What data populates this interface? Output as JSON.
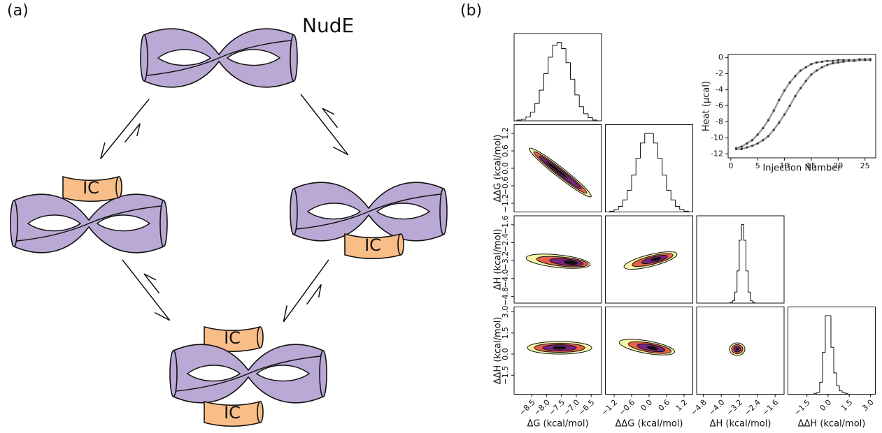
{
  "panel_labels": [
    "(a)",
    "(b)"
  ],
  "diagram": {
    "title": "NudE",
    "ic_labels": [
      "IC",
      "IC",
      "IC",
      "IC"
    ]
  },
  "chart_data": [
    {
      "type": "corner",
      "variables": [
        {
          "label": "ΔG (kcal/mol)",
          "lim": [
            -9.1,
            -6.15
          ],
          "ticks": [
            {
              "value": -8.5,
              "label": "−8.5"
            },
            {
              "value": -8.0,
              "label": "−8.0"
            },
            {
              "value": -7.5,
              "label": "−7.5"
            },
            {
              "value": -7.0,
              "label": "−7.0"
            },
            {
              "value": -6.5,
              "label": "−6.5"
            }
          ],
          "hist": {
            "bins": [
              -9.0,
              -8.85,
              -8.7,
              -8.55,
              -8.4,
              -8.25,
              -8.1,
              -7.95,
              -7.8,
              -7.65,
              -7.5,
              -7.35,
              -7.2,
              -7.05,
              -6.9,
              -6.75,
              -6.6,
              -6.45,
              -6.3
            ],
            "counts": [
              1,
              2,
              5,
              11,
              22,
              39,
              60,
              81,
              96,
              100,
              92,
              74,
              53,
              33,
              18,
              9,
              4,
              1
            ]
          }
        },
        {
          "label": "ΔΔG (kcal/mol)",
          "lim": [
            -1.5,
            1.5
          ],
          "ticks": [
            {
              "value": -1.2,
              "label": "−1.2"
            },
            {
              "value": -0.6,
              "label": "−0.6"
            },
            {
              "value": 0,
              "label": "0.0"
            },
            0.6,
            1.2
          ],
          "hist": {
            "bins": [
              -1.35,
              -1.2,
              -1.05,
              -0.9,
              -0.75,
              -0.6,
              -0.45,
              -0.3,
              -0.15,
              0,
              0.15,
              0.3,
              0.45,
              0.6,
              0.75,
              0.9,
              1.05,
              1.2,
              1.35
            ],
            "counts": [
              1,
              3,
              7,
              15,
              27,
              46,
              67,
              86,
              98,
              98,
              86,
              67,
              46,
              27,
              15,
              7,
              3,
              1
            ]
          }
        },
        {
          "label": "ΔH (kcal/mol)",
          "lim": [
            -5.1,
            -1.2
          ],
          "ticks": [
            {
              "value": -4.8,
              "label": "−4.8"
            },
            {
              "value": -4.0,
              "label": "−4.0"
            },
            {
              "value": -3.2,
              "label": "−3.2"
            },
            {
              "value": -2.4,
              "label": "−2.4"
            },
            {
              "value": -1.6,
              "label": "−1.6"
            }
          ],
          "hist": {
            "bins": [
              -3.6,
              -3.5,
              -3.4,
              -3.3,
              -3.2,
              -3.1,
              -3.0,
              -2.9,
              -2.8,
              -2.7,
              -2.6,
              -2.5
            ],
            "counts": [
              1,
              3,
              14,
              41,
              80,
              100,
              80,
              41,
              14,
              3,
              1
            ]
          }
        },
        {
          "label": "ΔΔH (kcal/mol)",
          "lim": [
            -2.85,
            3.35
          ],
          "ticks": [
            {
              "value": -1.5,
              "label": "−1.5"
            },
            {
              "value": 0,
              "label": "0.0"
            },
            1.5,
            {
              "value": 3.0,
              "label": "3.0"
            }
          ],
          "hist": {
            "bins": [
              -1.0,
              -0.8,
              -0.6,
              -0.4,
              -0.2,
              0,
              0.2,
              0.4,
              0.6,
              0.8,
              1.0,
              1.2,
              1.4
            ],
            "counts": [
              1,
              2,
              14,
              49,
              92,
              92,
              55,
              25,
              10,
              4,
              2,
              1
            ]
          }
        }
      ]
    },
    {
      "type": "line",
      "xlabel": "Injection Number",
      "ylabel": "Heat (μcal)",
      "x": [
        1,
        2,
        3,
        4,
        5,
        6,
        7,
        8,
        9,
        10,
        11,
        12,
        13,
        14,
        15,
        16,
        17,
        18,
        19,
        20,
        21,
        22,
        23,
        24,
        25,
        26
      ],
      "series": [
        {
          "values": [
            -11.3,
            -11.1,
            -10.7,
            -10.3,
            -9.6,
            -8.8,
            -7.8,
            -6.6,
            -5.3,
            -4.1,
            -3.1,
            -2.3,
            -1.6,
            -1.2,
            -0.8,
            -0.6,
            -0.5,
            -0.4,
            -0.4,
            -0.3,
            -0.3,
            -0.3,
            -0.3,
            -0.2,
            -0.2,
            -0.2
          ]
        },
        {
          "values": [
            -11.4,
            -11.4,
            -11.2,
            -11.0,
            -10.7,
            -10.3,
            -9.8,
            -9.0,
            -8.1,
            -7.1,
            -6.0,
            -4.8,
            -3.8,
            -2.9,
            -2.1,
            -1.6,
            -1.2,
            -0.9,
            -0.7,
            -0.6,
            -0.5,
            -0.4,
            -0.4,
            -0.3,
            -0.3,
            -0.3
          ]
        }
      ],
      "color": "#9a9a9a",
      "marker_color": "#333333",
      "xlim": [
        -0.5,
        27
      ],
      "ylim": [
        -12.5,
        0.4
      ],
      "xticks": [
        0,
        5,
        10,
        15,
        20,
        25
      ],
      "yticks": [
        0,
        -2,
        -4,
        -6,
        -8,
        -10,
        -12
      ]
    }
  ]
}
